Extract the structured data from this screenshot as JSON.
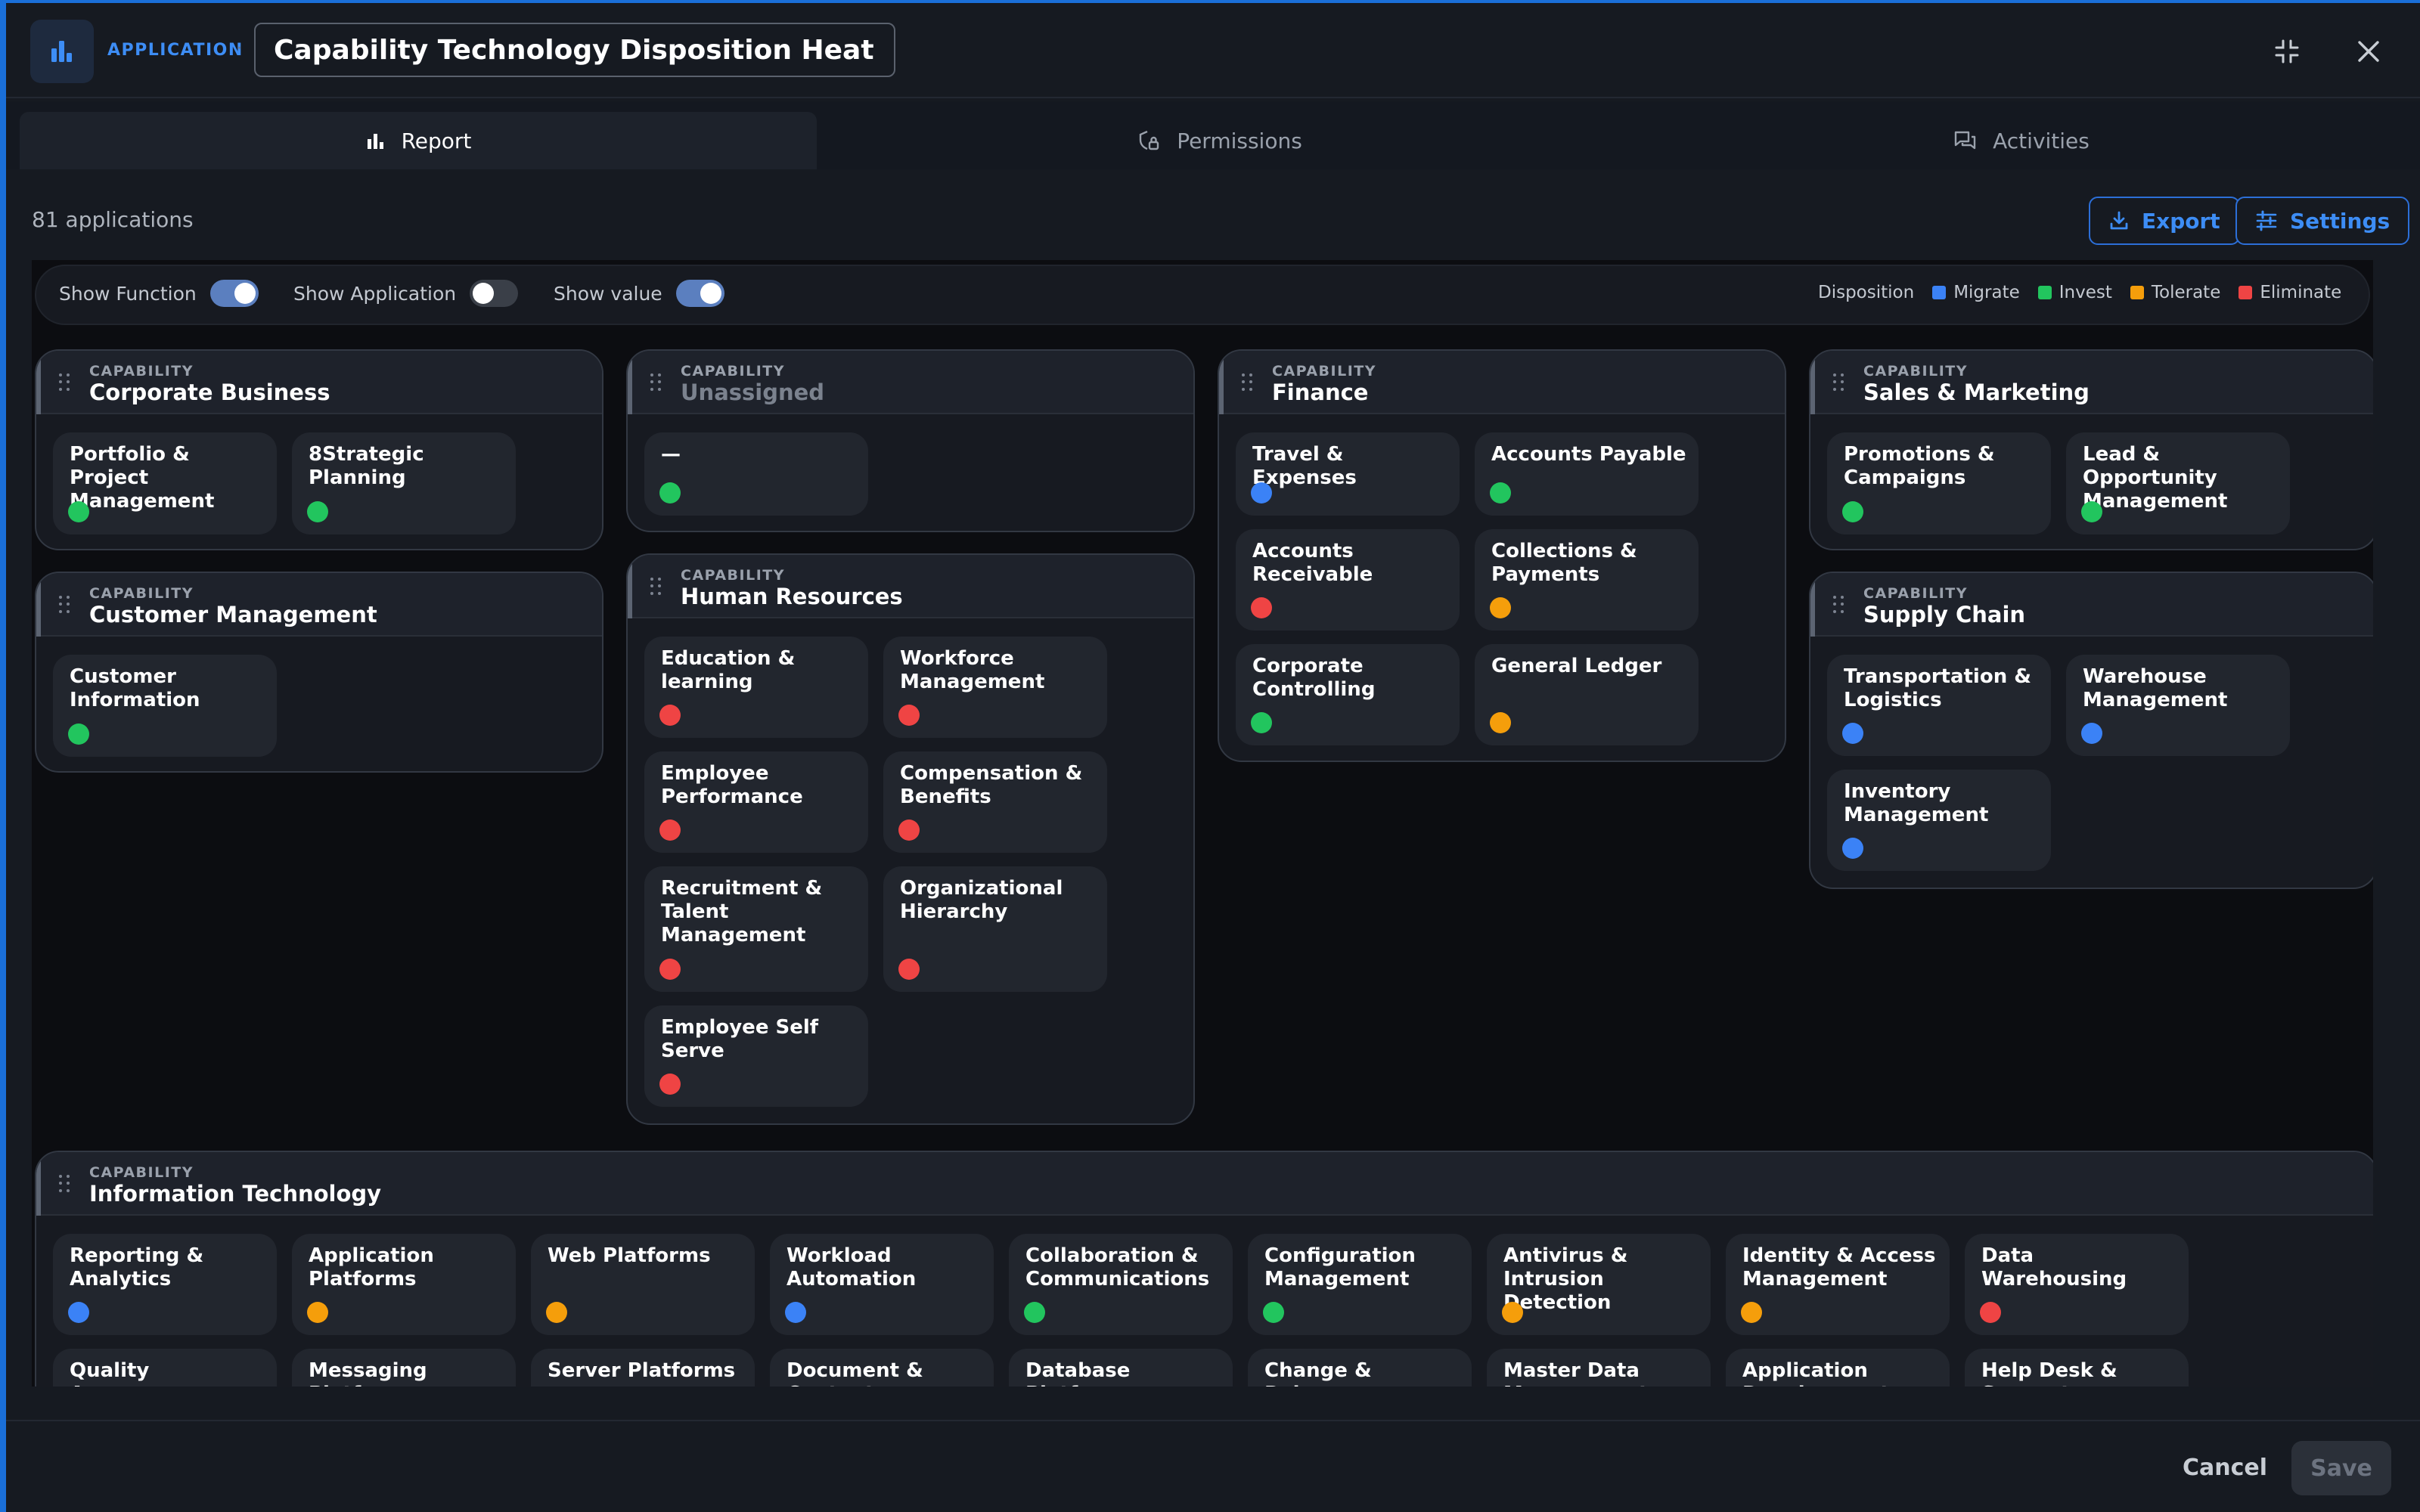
{
  "header": {
    "breadcrumb": "APPLICATION",
    "separator": "·",
    "title": "Capability Technology Disposition Heatmap"
  },
  "tabs": [
    {
      "label": "Report",
      "icon": "bar-chart-icon",
      "active": true
    },
    {
      "label": "Permissions",
      "icon": "shield-lock-icon",
      "active": false
    },
    {
      "label": "Activities",
      "icon": "chat-icon",
      "active": false
    }
  ],
  "summary": {
    "count_label": "81 applications"
  },
  "actions": {
    "export_label": "Export",
    "settings_label": "Settings"
  },
  "toggles": {
    "show_function": {
      "label": "Show Function",
      "on": true
    },
    "show_application": {
      "label": "Show Application",
      "on": false
    },
    "show_value": {
      "label": "Show value",
      "on": true
    }
  },
  "legend": {
    "title": "Disposition",
    "items": [
      {
        "label": "Migrate",
        "color": "#3b82f6"
      },
      {
        "label": "Invest",
        "color": "#22c55e"
      },
      {
        "label": "Tolerate",
        "color": "#f59e0b"
      },
      {
        "label": "Eliminate",
        "color": "#ef4444"
      }
    ]
  },
  "capabilities": {
    "kicker": "CAPABILITY",
    "corporate_business": {
      "title": "Corporate Business",
      "items": [
        {
          "name": "Portfolio & Project Management",
          "disposition": "invest"
        },
        {
          "name": "8Strategic Planning",
          "disposition": "invest"
        }
      ]
    },
    "customer_management": {
      "title": "Customer Management",
      "items": [
        {
          "name": "Customer Information",
          "disposition": "invest"
        }
      ]
    },
    "unassigned": {
      "title": "Unassigned",
      "items": [
        {
          "name": "—",
          "disposition": "invest"
        }
      ]
    },
    "human_resources": {
      "title": "Human Resources",
      "items": [
        {
          "name": "Education & learning",
          "disposition": "eliminate"
        },
        {
          "name": "Workforce Management",
          "disposition": "eliminate"
        },
        {
          "name": "Employee Performance",
          "disposition": "eliminate"
        },
        {
          "name": "Compensation & Benefits",
          "disposition": "eliminate"
        },
        {
          "name": "Recruitment & Talent Management",
          "disposition": "eliminate"
        },
        {
          "name": "Organizational Hierarchy",
          "disposition": "eliminate"
        },
        {
          "name": "Employee Self Serve",
          "disposition": "eliminate"
        }
      ]
    },
    "finance": {
      "title": "Finance",
      "items": [
        {
          "name": "Travel & Expenses",
          "disposition": "migrate"
        },
        {
          "name": "Accounts Payable",
          "disposition": "invest"
        },
        {
          "name": "Accounts Receivable",
          "disposition": "eliminate"
        },
        {
          "name": "Collections & Payments",
          "disposition": "tolerate"
        },
        {
          "name": "Corporate Controlling",
          "disposition": "invest"
        },
        {
          "name": "General Ledger",
          "disposition": "tolerate"
        }
      ]
    },
    "sales_marketing": {
      "title": "Sales & Marketing",
      "items": [
        {
          "name": "Promotions & Campaigns",
          "disposition": "invest"
        },
        {
          "name": "Lead & Opportunity Management",
          "disposition": "invest"
        }
      ]
    },
    "supply_chain": {
      "title": "Supply Chain",
      "items": [
        {
          "name": "Transportation & Logistics",
          "disposition": "migrate"
        },
        {
          "name": "Warehouse Management",
          "disposition": "migrate"
        },
        {
          "name": "Inventory Management",
          "disposition": "migrate"
        }
      ]
    },
    "information_technology": {
      "title": "Information Technology",
      "items": [
        {
          "name": "Reporting & Analytics",
          "disposition": "migrate"
        },
        {
          "name": "Application Platforms",
          "disposition": "tolerate"
        },
        {
          "name": "Web Platforms",
          "disposition": "tolerate"
        },
        {
          "name": "Workload Automation",
          "disposition": "migrate"
        },
        {
          "name": "Collaboration & Communications",
          "disposition": "invest"
        },
        {
          "name": "Configuration Management",
          "disposition": "invest"
        },
        {
          "name": "Antivirus & Intrusion Detection",
          "disposition": "tolerate"
        },
        {
          "name": "Identity & Access Management",
          "disposition": "tolerate"
        },
        {
          "name": "Data Warehousing",
          "disposition": "eliminate"
        },
        {
          "name": "Quality Assurance",
          "disposition": ""
        },
        {
          "name": "Messaging Platforms",
          "disposition": ""
        },
        {
          "name": "Server Platforms",
          "disposition": ""
        },
        {
          "name": "Document & Content",
          "disposition": ""
        },
        {
          "name": "Database Platforms",
          "disposition": ""
        },
        {
          "name": "Change & Release Management",
          "disposition": ""
        },
        {
          "name": "Master Data Management",
          "disposition": ""
        },
        {
          "name": "Application Development",
          "disposition": ""
        },
        {
          "name": "Help Desk & Support",
          "disposition": ""
        }
      ]
    }
  },
  "footer": {
    "cancel_label": "Cancel",
    "save_label": "Save"
  }
}
